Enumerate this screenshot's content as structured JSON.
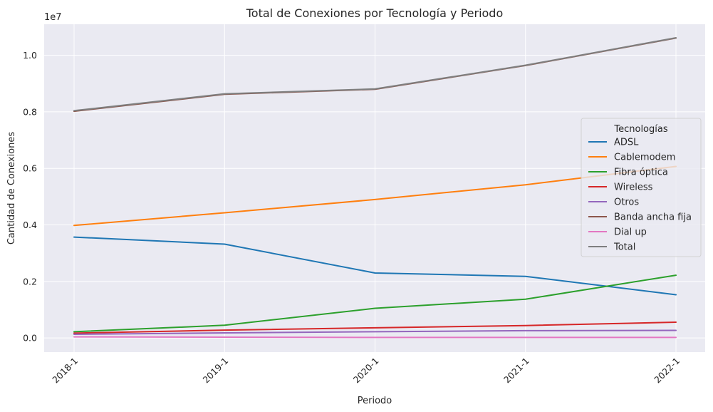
{
  "chart_data": {
    "type": "line",
    "title": "Total de Conexiones por Tecnología y Periodo",
    "xlabel": "Periodo",
    "ylabel": "Cantidad de Conexiones",
    "y_offset_label": "1e7",
    "categories": [
      "2018-1",
      "2019-1",
      "2020-1",
      "2021-1",
      "2022-1"
    ],
    "ylim": [
      -0.05,
      1.11
    ],
    "yticks": [
      0.0,
      0.2,
      0.4,
      0.6,
      0.8,
      1.0
    ],
    "ytick_labels": [
      "0.0",
      "0.2",
      "0.4",
      "0.6",
      "0.8",
      "1.0"
    ],
    "y_scale_note": "values in units of 1e7",
    "grid": true,
    "legend_title": "Tecnologías",
    "legend_position": "right",
    "series": [
      {
        "name": "ADSL",
        "color": "#1f77b4",
        "values": [
          0.357,
          0.332,
          0.23,
          0.218,
          0.153
        ]
      },
      {
        "name": "Cablemodem",
        "color": "#ff7f0e",
        "values": [
          0.398,
          0.443,
          0.49,
          0.542,
          0.607
        ]
      },
      {
        "name": "Fibra óptica",
        "color": "#2ca02c",
        "values": [
          0.022,
          0.045,
          0.105,
          0.137,
          0.222
        ]
      },
      {
        "name": "Wireless",
        "color": "#d62728",
        "values": [
          0.017,
          0.028,
          0.036,
          0.044,
          0.056
        ]
      },
      {
        "name": "Otros",
        "color": "#9467bd",
        "values": [
          0.013,
          0.018,
          0.022,
          0.026,
          0.027
        ]
      },
      {
        "name": "Banda ancha fija",
        "color": "#8c564b",
        "values": [
          0.802,
          0.862,
          0.88,
          0.964,
          1.061
        ]
      },
      {
        "name": "Dial up",
        "color": "#e377c2",
        "values": [
          0.004,
          0.003,
          0.002,
          0.002,
          0.002
        ]
      },
      {
        "name": "Total",
        "color": "#7f7f7f",
        "values": [
          0.804,
          0.864,
          0.881,
          0.965,
          1.062
        ]
      }
    ]
  }
}
